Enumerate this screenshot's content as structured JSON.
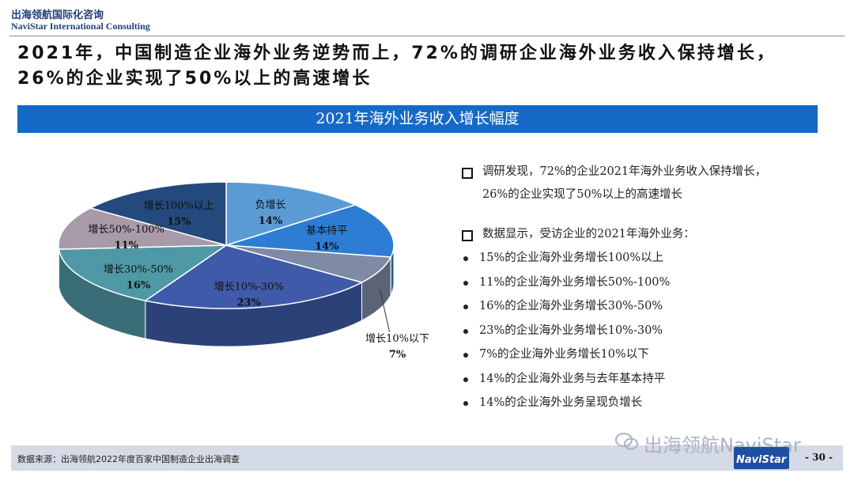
{
  "header": {
    "brand_cn": "出海领航国际化咨询",
    "brand_en": "NaviStar International Consulting",
    "headline_line1": "2021年，中国制造企业海外业务逆势而上，72%的调研企业海外业务收入保持增长，",
    "headline_line2": "26%的企业实现了50%以上的高速增长"
  },
  "banner": {
    "title": "2021年海外业务收入增长幅度"
  },
  "chart_data": {
    "type": "pie",
    "title": "2021年海外业务收入增长幅度",
    "unit": "%",
    "slices": [
      {
        "label": "负增长",
        "value": 14,
        "value_label": "14%",
        "color": "#5b9bd5"
      },
      {
        "label": "基本持平",
        "value": 14,
        "value_label": "14%",
        "color": "#2e7dd4"
      },
      {
        "label": "增长10%以下",
        "value": 7,
        "value_label": "7%",
        "color": "#7f8ba4"
      },
      {
        "label": "增长10%-30%",
        "value": 23,
        "value_label": "23%",
        "color": "#3f5aa8"
      },
      {
        "label": "增长30%-50%",
        "value": 16,
        "value_label": "16%",
        "color": "#4f99a6"
      },
      {
        "label": "增长50%-100%",
        "value": 11,
        "value_label": "11%",
        "color": "#a89aa8"
      },
      {
        "label": "增长100%以上",
        "value": 15,
        "value_label": "15%",
        "color": "#24497c"
      }
    ]
  },
  "notes": {
    "para1": "调研发现，72%的企业2021年海外业务收入保持增长，",
    "para1_cont": "26%的企业实现了50%以上的高速增长",
    "para2": "数据显示，受访企业的2021年海外业务：",
    "bullets": [
      "15%的企业海外业务增长100%以上",
      "11%的企业海外业务增长50%-100%",
      "16%的企业海外业务增长30%-50%",
      "23%的企业海外业务增长10%-30%",
      "7%的企业海外业务增长10%以下",
      "14%的企业海外业务与去年基本持平",
      "14%的企业海外业务呈现负增长"
    ]
  },
  "footer": {
    "source": "数据来源：出海领航2022年度百家中国制造企业出海调查",
    "watermark": "出海领航NaviStar",
    "logo_text": "NaviStar",
    "page": "- 30 -"
  },
  "colors": {
    "banner": "#1669c7",
    "brand": "#1f3f78",
    "footer_bar": "#d4dbe6"
  }
}
